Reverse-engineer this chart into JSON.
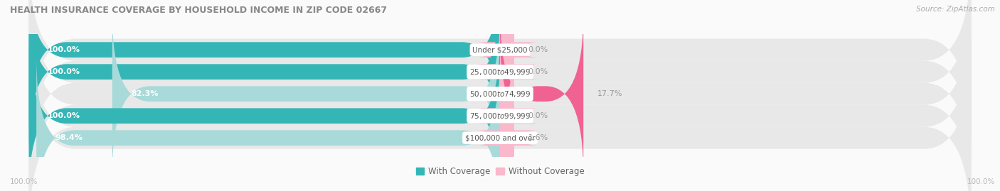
{
  "title": "HEALTH INSURANCE COVERAGE BY HOUSEHOLD INCOME IN ZIP CODE 02667",
  "source": "Source: ZipAtlas.com",
  "categories": [
    "Under $25,000",
    "$25,000 to $49,999",
    "$50,000 to $74,999",
    "$75,000 to $99,999",
    "$100,000 and over"
  ],
  "with_coverage": [
    100.0,
    100.0,
    82.3,
    100.0,
    98.4
  ],
  "without_coverage": [
    0.0,
    0.0,
    17.7,
    0.0,
    1.6
  ],
  "color_with_full": "#35b6b6",
  "color_with_light": "#a8dada",
  "color_without_full": "#f06292",
  "color_without_light": "#f9b8cc",
  "color_row_bg": "#e8e8e8",
  "title_color": "#888888",
  "label_color_white": "#ffffff",
  "label_color_gray": "#999999",
  "source_color": "#aaaaaa",
  "x_left_label": "100.0%",
  "x_right_label": "100.0%",
  "legend_with": "With Coverage",
  "legend_without": "Without Coverage",
  "fig_bg": "#fafafa"
}
